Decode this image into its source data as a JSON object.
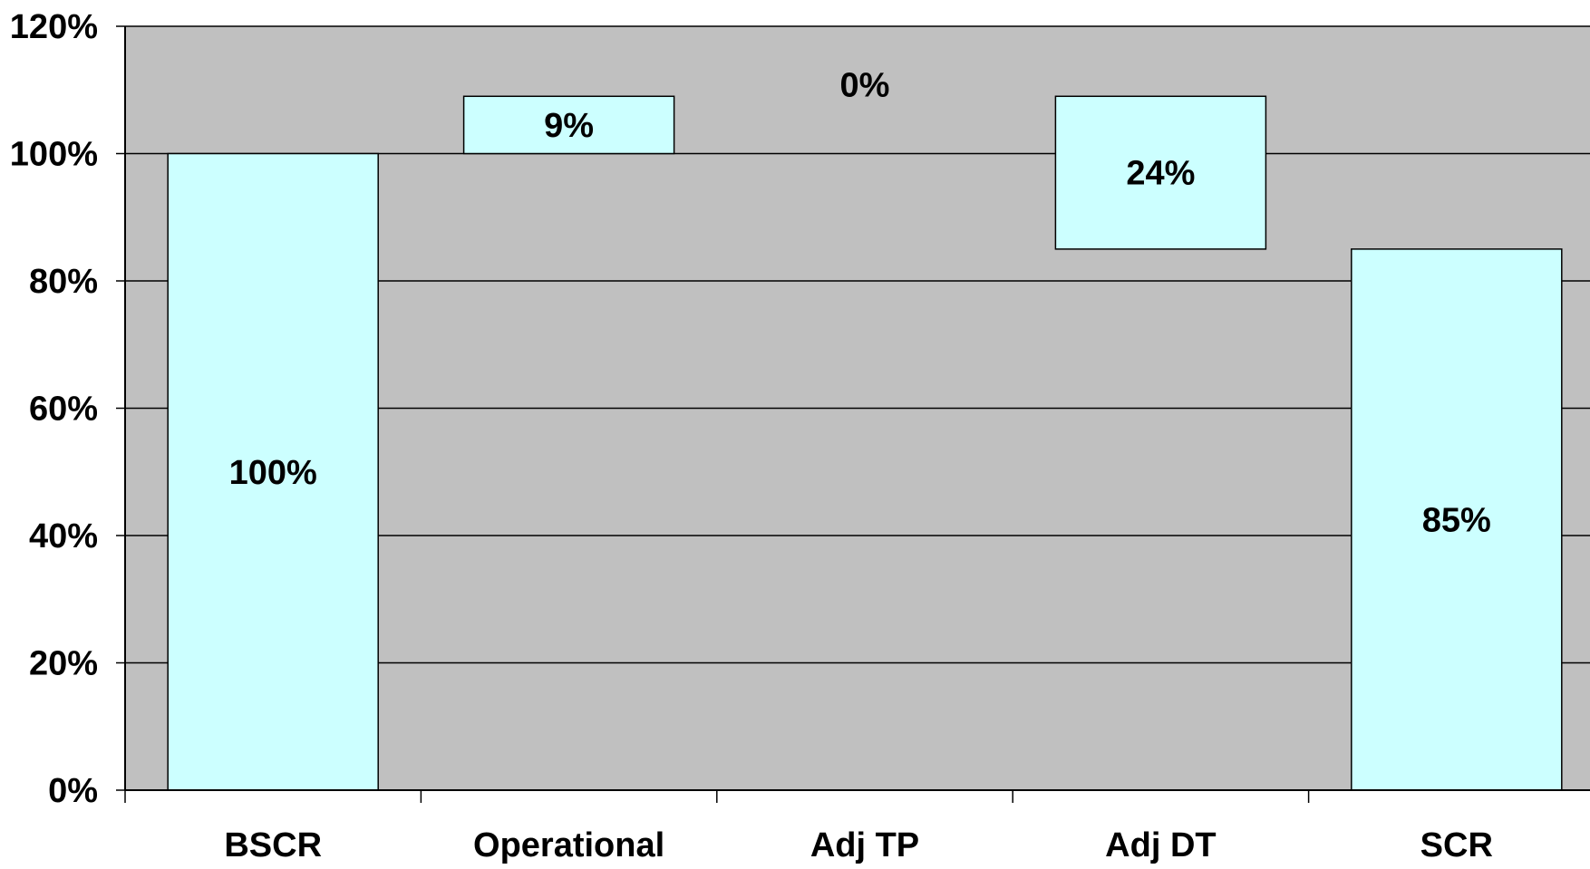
{
  "chart_data": {
    "type": "bar",
    "subtype": "waterfall",
    "title": "",
    "xlabel": "",
    "ylabel": "",
    "ylim": [
      0,
      1.2
    ],
    "y_ticks": [
      0,
      0.2,
      0.4,
      0.6,
      0.8,
      1.0,
      1.2
    ],
    "y_tick_labels": [
      "0%",
      "20%",
      "40%",
      "60%",
      "80%",
      "100%",
      "120%"
    ],
    "grid": "horizontal major gridlines",
    "legend": "none",
    "categories": [
      "BSCR",
      "Operational",
      "Adj TP",
      "Adj DT",
      "SCR"
    ],
    "bars": [
      {
        "category": "BSCR",
        "bottom": 0.0,
        "top": 1.0,
        "value_label": "100%"
      },
      {
        "category": "Operational",
        "bottom": 1.0,
        "top": 1.09,
        "value_label": "9%"
      },
      {
        "category": "Adj TP",
        "bottom": 1.09,
        "top": 1.09,
        "value_label": "0%"
      },
      {
        "category": "Adj DT",
        "bottom": 0.85,
        "top": 1.09,
        "value_label": "24%"
      },
      {
        "category": "SCR",
        "bottom": 0.0,
        "top": 0.85,
        "value_label": "85%"
      }
    ],
    "colors": {
      "plot_area": "#c0c0c0",
      "bar_fill": "#ccffff",
      "bar_stroke": "#000000",
      "gridline": "#000000"
    }
  }
}
